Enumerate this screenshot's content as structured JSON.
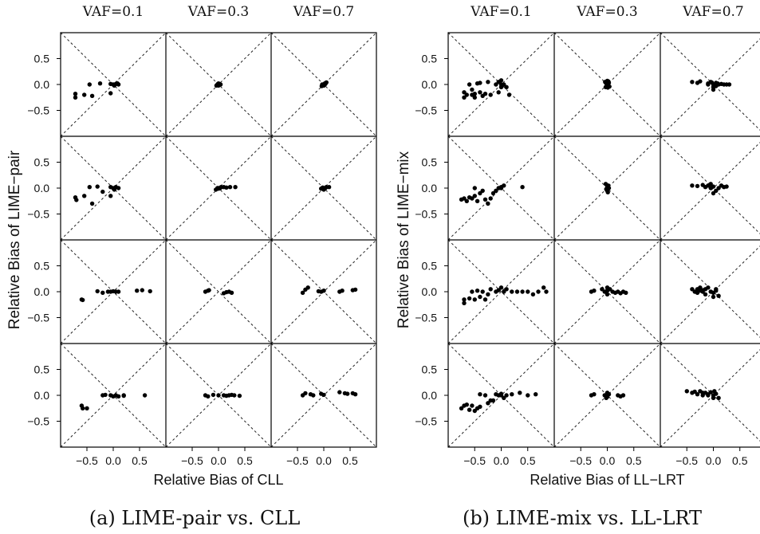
{
  "chart_data": [
    {
      "type": "scatter",
      "caption": "(a) LIME-pair vs. CLL",
      "xlabel": "Relative Bias of CLL",
      "ylabel": "Relative Bias of LIME−pair",
      "col_labels": [
        "VAF=0.1",
        "VAF=0.3",
        "VAF=0.7"
      ],
      "xlim": [
        -1.0,
        1.0
      ],
      "ylim": [
        -1.0,
        1.0
      ],
      "xticks": [
        -0.5,
        0.0,
        0.5
      ],
      "xtick_labels": [
        "−0.5",
        "0.0",
        "0.5"
      ],
      "yticks": [
        0.5,
        0.0,
        -0.5
      ],
      "ytick_labels": [
        "0.5",
        "0.0",
        "−0.5"
      ],
      "grid": "diagonals",
      "panels": [
        [
          {
            "x": [
              -0.72,
              -0.72,
              -0.55,
              -0.45,
              -0.4,
              -0.25,
              -0.05,
              0.0,
              0.05,
              0.1,
              0.02,
              0.08,
              -0.05
            ],
            "y": [
              -0.18,
              -0.25,
              -0.2,
              0.0,
              -0.22,
              0.02,
              -0.17,
              0.0,
              0.01,
              0.0,
              -0.02,
              0.02,
              0.01
            ]
          },
          {
            "x": [
              -0.04,
              -0.02,
              0.0,
              0.0,
              0.02,
              0.04,
              0.01,
              -0.01
            ],
            "y": [
              -0.02,
              0.0,
              0.02,
              -0.02,
              0.01,
              0.0,
              0.0,
              0.01
            ]
          },
          {
            "x": [
              -0.04,
              -0.02,
              0.0,
              0.02,
              0.04,
              0.05,
              0.0,
              -0.03,
              0.03
            ],
            "y": [
              -0.03,
              -0.01,
              0.0,
              0.02,
              0.03,
              0.04,
              -0.02,
              0.0,
              0.01
            ]
          }
        ],
        [
          {
            "x": [
              -0.72,
              -0.7,
              -0.55,
              -0.45,
              -0.4,
              -0.3,
              -0.2,
              -0.05,
              0.0,
              0.05,
              0.1,
              0.02,
              -0.05
            ],
            "y": [
              -0.18,
              -0.23,
              -0.15,
              0.02,
              -0.3,
              0.03,
              -0.07,
              -0.15,
              0.0,
              0.02,
              0.0,
              -0.03,
              0.02
            ]
          },
          {
            "x": [
              -0.05,
              0.0,
              0.05,
              0.1,
              0.15,
              0.22,
              0.32,
              0.0,
              -0.02,
              0.03
            ],
            "y": [
              -0.03,
              0.0,
              0.02,
              0.02,
              0.01,
              0.02,
              0.02,
              -0.01,
              0.0,
              0.0
            ]
          },
          {
            "x": [
              -0.05,
              0.0,
              0.05,
              0.1,
              0.0,
              0.03,
              -0.02
            ],
            "y": [
              -0.01,
              0.0,
              0.02,
              0.02,
              -0.03,
              0.0,
              0.01
            ]
          }
        ],
        [
          {
            "x": [
              -0.6,
              -0.58,
              -0.3,
              -0.2,
              -0.1,
              0.0,
              0.05,
              0.1,
              0.45,
              0.55,
              0.7,
              -0.05
            ],
            "y": [
              -0.15,
              -0.16,
              0.01,
              -0.02,
              0.0,
              0.01,
              0.0,
              0.0,
              0.02,
              0.03,
              0.01,
              0.0
            ]
          },
          {
            "x": [
              -0.25,
              -0.2,
              -0.18,
              0.1,
              0.15,
              0.2,
              0.25
            ],
            "y": [
              0.0,
              0.02,
              0.03,
              -0.03,
              -0.01,
              0.0,
              -0.02
            ]
          },
          {
            "x": [
              -0.4,
              -0.35,
              -0.3,
              -0.05,
              0.0,
              0.3,
              0.35,
              0.55,
              0.6,
              -0.1
            ],
            "y": [
              -0.02,
              0.04,
              0.08,
              0.0,
              0.02,
              0.0,
              0.02,
              0.03,
              0.04,
              0.01
            ]
          }
        ],
        [
          {
            "x": [
              -0.6,
              -0.58,
              -0.5,
              -0.2,
              -0.15,
              -0.05,
              0.0,
              0.05,
              0.1,
              0.2,
              0.6,
              0.2
            ],
            "y": [
              -0.2,
              -0.25,
              -0.25,
              0.0,
              0.01,
              0.0,
              -0.02,
              0.0,
              -0.02,
              -0.01,
              0.0,
              0.0
            ]
          },
          {
            "x": [
              -0.25,
              -0.2,
              -0.1,
              0.0,
              0.1,
              0.15,
              0.2,
              0.25,
              0.3,
              0.4
            ],
            "y": [
              0.0,
              -0.02,
              0.01,
              0.0,
              0.0,
              -0.01,
              0.0,
              0.01,
              0.0,
              -0.01
            ]
          },
          {
            "x": [
              -0.4,
              -0.35,
              -0.25,
              -0.2,
              -0.05,
              0.0,
              0.3,
              0.4,
              0.45,
              0.55,
              0.6
            ],
            "y": [
              0.0,
              0.04,
              0.02,
              0.0,
              0.03,
              0.01,
              0.06,
              0.04,
              0.03,
              0.04,
              0.02
            ]
          }
        ]
      ]
    },
    {
      "type": "scatter",
      "caption": "(b) LIME-mix vs. LL-LRT",
      "xlabel": "Relative Bias of LL−LRT",
      "ylabel": "Relative Bias of LIME−mix",
      "col_labels": [
        "VAF=0.1",
        "VAF=0.3",
        "VAF=0.7"
      ],
      "xlim": [
        -1.0,
        1.0
      ],
      "ylim": [
        -1.0,
        1.0
      ],
      "xticks": [
        -0.5,
        0.0,
        0.5
      ],
      "xtick_labels": [
        "−0.5",
        "0.0",
        "0.5"
      ],
      "yticks": [
        0.5,
        0.0,
        -0.5
      ],
      "ytick_labels": [
        "0.5",
        "0.0",
        "−0.5"
      ],
      "grid": "diagonals",
      "panels": [
        [
          {
            "x": [
              -0.7,
              -0.7,
              -0.65,
              -0.6,
              -0.55,
              -0.5,
              -0.45,
              -0.4,
              -0.35,
              -0.3,
              -0.25,
              -0.2,
              -0.1,
              -0.05,
              0.0,
              0.05,
              0.0,
              -0.05,
              0.0,
              0.1,
              0.15,
              -0.4,
              -0.5,
              -0.55
            ],
            "y": [
              -0.15,
              -0.25,
              -0.2,
              0.0,
              -0.2,
              -0.25,
              0.02,
              -0.15,
              -0.22,
              -0.18,
              0.05,
              -0.2,
              0.0,
              0.05,
              0.08,
              0.0,
              -0.05,
              -0.15,
              0.0,
              -0.05,
              -0.2,
              0.03,
              -0.18,
              -0.1
            ]
          },
          {
            "x": [
              -0.04,
              -0.02,
              0.0,
              0.02,
              0.04,
              0.0,
              -0.03,
              0.03,
              0.01,
              -0.01,
              0.0,
              0.02
            ],
            "y": [
              0.05,
              0.02,
              0.0,
              -0.02,
              -0.04,
              0.07,
              -0.05,
              0.03,
              -0.06,
              0.04,
              -0.02,
              0.06
            ]
          },
          {
            "x": [
              -0.4,
              -0.3,
              -0.25,
              -0.1,
              -0.05,
              0.0,
              0.0,
              0.05,
              0.1,
              0.15,
              0.2,
              0.25,
              0.3,
              0.0,
              -0.03,
              0.05,
              0.08,
              -0.1
            ],
            "y": [
              0.05,
              0.03,
              0.06,
              0.02,
              0.05,
              0.0,
              -0.05,
              0.03,
              0.0,
              0.01,
              0.0,
              0.0,
              0.0,
              -0.1,
              0.04,
              -0.03,
              0.02,
              0.0
            ]
          }
        ],
        [
          {
            "x": [
              -0.75,
              -0.7,
              -0.65,
              -0.6,
              -0.55,
              -0.5,
              -0.45,
              -0.4,
              -0.3,
              -0.25,
              -0.2,
              -0.15,
              -0.1,
              -0.05,
              0.0,
              0.05,
              0.0,
              0.4,
              -0.5,
              -0.35
            ],
            "y": [
              -0.22,
              -0.2,
              -0.25,
              -0.18,
              -0.2,
              -0.15,
              -0.25,
              -0.1,
              -0.22,
              -0.3,
              -0.2,
              -0.1,
              -0.05,
              0.0,
              0.02,
              0.05,
              0.0,
              0.02,
              0.0,
              -0.05
            ]
          },
          {
            "x": [
              -0.03,
              0.0,
              0.03,
              0.0,
              -0.02,
              0.02,
              0.01
            ],
            "y": [
              0.08,
              0.03,
              0.0,
              -0.05,
              -0.02,
              0.05,
              -0.08
            ]
          },
          {
            "x": [
              -0.4,
              -0.3,
              -0.2,
              -0.15,
              -0.1,
              -0.05,
              0.0,
              0.05,
              0.1,
              0.15,
              0.2,
              0.25,
              0.0,
              -0.05
            ],
            "y": [
              0.05,
              0.04,
              0.06,
              0.02,
              0.05,
              0.0,
              0.03,
              -0.05,
              0.0,
              0.05,
              0.02,
              0.03,
              -0.1,
              0.08
            ]
          }
        ],
        [
          {
            "x": [
              -0.7,
              -0.7,
              -0.6,
              -0.55,
              -0.5,
              -0.45,
              -0.4,
              -0.35,
              -0.25,
              -0.2,
              -0.1,
              -0.05,
              0.0,
              0.05,
              0.1,
              0.2,
              0.3,
              0.4,
              0.5,
              0.6,
              0.7,
              0.8,
              0.85,
              -0.3
            ],
            "y": [
              -0.15,
              -0.22,
              -0.13,
              0.0,
              -0.15,
              0.02,
              -0.1,
              0.0,
              -0.05,
              0.05,
              0.0,
              0.03,
              0.08,
              0.0,
              0.05,
              0.0,
              0.0,
              0.0,
              0.0,
              -0.05,
              0.0,
              0.08,
              0.0,
              -0.15
            ]
          },
          {
            "x": [
              -0.3,
              -0.25,
              -0.1,
              -0.05,
              0.0,
              0.0,
              0.05,
              0.1,
              0.15,
              0.2,
              0.25,
              0.3,
              0.35,
              0.0
            ],
            "y": [
              0.0,
              0.02,
              0.05,
              0.0,
              0.02,
              -0.05,
              0.05,
              0.0,
              -0.02,
              0.0,
              -0.03,
              0.0,
              -0.02,
              0.08
            ]
          },
          {
            "x": [
              -0.4,
              -0.35,
              -0.3,
              -0.25,
              -0.2,
              -0.15,
              -0.1,
              -0.05,
              0.0,
              0.05,
              0.1,
              -0.3,
              -0.25,
              -0.2,
              0.0,
              0.05,
              -0.15
            ],
            "y": [
              0.05,
              0.0,
              0.05,
              0.02,
              0.0,
              0.05,
              0.08,
              0.0,
              -0.02,
              0.05,
              -0.08,
              -0.02,
              0.08,
              0.03,
              -0.1,
              0.02,
              -0.05
            ]
          }
        ],
        [
          {
            "x": [
              -0.75,
              -0.7,
              -0.65,
              -0.6,
              -0.55,
              -0.5,
              -0.45,
              -0.4,
              -0.3,
              -0.25,
              -0.2,
              -0.1,
              -0.05,
              0.0,
              0.05,
              0.1,
              0.2,
              0.35,
              0.5,
              0.65,
              0.0,
              -0.15,
              -0.4
            ],
            "y": [
              -0.25,
              -0.2,
              -0.18,
              -0.28,
              -0.2,
              -0.3,
              -0.25,
              0.02,
              0.0,
              -0.15,
              -0.1,
              0.02,
              0.0,
              0.0,
              -0.05,
              0.0,
              0.02,
              0.05,
              0.0,
              0.02,
              0.03,
              -0.1,
              -0.22
            ]
          },
          {
            "x": [
              -0.3,
              -0.25,
              -0.05,
              0.0,
              0.0,
              0.03,
              0.2,
              0.25,
              0.3,
              -0.02,
              0.02
            ],
            "y": [
              0.0,
              0.02,
              0.0,
              0.05,
              -0.03,
              0.02,
              0.0,
              -0.02,
              0.0,
              -0.05,
              0.03
            ]
          },
          {
            "x": [
              -0.5,
              -0.4,
              -0.35,
              -0.3,
              -0.25,
              -0.2,
              -0.15,
              -0.1,
              -0.05,
              0.0,
              0.0,
              0.05,
              0.1,
              -0.2,
              -0.1,
              0.02
            ],
            "y": [
              0.08,
              0.05,
              0.07,
              0.02,
              0.08,
              0.0,
              0.05,
              0.0,
              0.06,
              0.0,
              -0.05,
              0.03,
              -0.05,
              0.05,
              0.02,
              0.08
            ]
          }
        ]
      ]
    }
  ]
}
